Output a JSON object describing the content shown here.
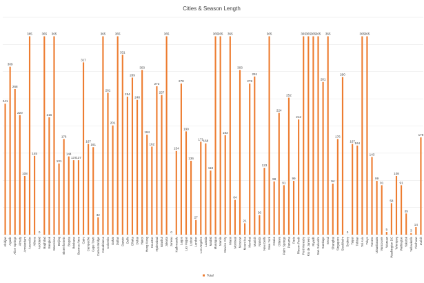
{
  "chart_data": {
    "type": "bar",
    "title": "Cities & Season Length",
    "color": "#ED7D31",
    "legend_position": "bottom",
    "ylim": [
      0,
      400
    ],
    "grid": true,
    "series": [
      {
        "name": "Total",
        "values": [
          241,
          309,
          268,
          220,
          108,
          365,
          145,
          0,
          365,
          216,
          365,
          131,
          176,
          144,
          137,
          137,
          317,
          167,
          161,
          32,
          365,
          261,
          201,
          365,
          331,
          254,
          289,
          248,
          303,
          184,
          162,
          273,
          257,
          365,
          0,
          154,
          278,
          190,
          136,
          27,
          171,
          168,
          118,
          365,
          365,
          183,
          365,
          64,
          303,
          21,
          278,
          291,
          36,
          123,
          365,
          98,
          224,
          91,
          252,
          99,
          212,
          365,
          365,
          365,
          365,
          281,
          365,
          94,
          176,
          290,
          0,
          167,
          164,
          365,
          365,
          143,
          99,
          91,
          5,
          58,
          108,
          91,
          39,
          3,
          14,
          179
        ]
      }
    ],
    "categories": [
      "Abidjan",
      "Agadir",
      "Alice Springs",
      "Almaty",
      "Amsterdam",
      "Asunción",
      "Athens",
      "Auckland",
      "Baghdad",
      "Bangkok",
      "Barcelona",
      "Beijing",
      "Bloemfontein",
      "Bogota",
      "Brisbane",
      "Buenos Aires",
      "Cairo",
      "Campeche",
      "Cape Town",
      "Carson Bridge",
      "Casablanca",
      "Colombo",
      "Dakar",
      "Dallas",
      "Darwin",
      "Delhi",
      "Dhaka",
      "Dubai",
      "Hanoi",
      "Hong Kong",
      "Houston",
      "Hyderabad",
      "Istanbul",
      "Jakarta",
      "Juneau",
      "Kathmandu",
      "Lagos",
      "Las Vegas",
      "Lisbon",
      "London",
      "Los Angeles",
      "Luanda",
      "Madrid",
      "Managua",
      "Manila",
      "Mexico City",
      "Miami",
      "Montreal",
      "Moscow",
      "Mount Isa",
      "Mumbai",
      "Munich",
      "Nairobi",
      "New Delhi",
      "New York",
      "Osaka",
      "Ottawa",
      "Palm Springs",
      "Panama",
      "Paris",
      "Phnom Penh",
      "Port Moresby",
      "Rio de Janeiro",
      "Riyadh",
      "San Salvador",
      "Santiago",
      "Seoul",
      "Shanghai",
      "Singapore",
      "Stockholm",
      "Sydney",
      "Taipei",
      "Tehran",
      "Tel Aviv",
      "Tokyo",
      "Toronto",
      "Ulaanbaatar",
      "Vancouver",
      "Warsaw",
      "Washington DC",
      "Winnipeg",
      "Wellington",
      "Yakutsk",
      "Yellowknife",
      "Yinchuan",
      "Zurich"
    ]
  }
}
